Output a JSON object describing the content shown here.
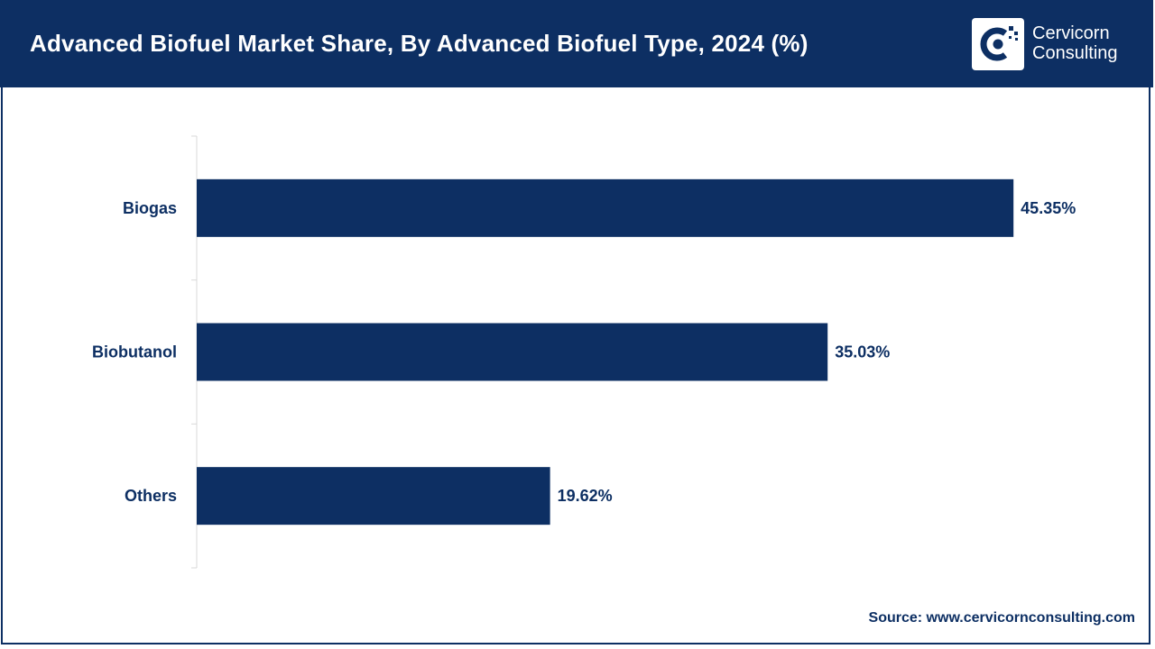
{
  "header": {
    "title": "Advanced Biofuel Market Share, By Advanced Biofuel Type, 2024 (%)",
    "logo": {
      "line1": "Cervicorn",
      "line2": "Consulting"
    }
  },
  "footer": {
    "source": "Source: www.cervicornconsulting.com"
  },
  "colors": {
    "brand": "#0d2f63",
    "bar": "#0d2f63",
    "axis": "#d9d9d9",
    "label": "#0d2f63"
  },
  "chart_data": {
    "type": "bar",
    "orientation": "horizontal",
    "title": "Advanced Biofuel Market Share, By Advanced Biofuel Type, 2024 (%)",
    "categories": [
      "Biogas",
      "Biobutanol",
      "Others"
    ],
    "values": [
      45.35,
      35.03,
      19.62
    ],
    "data_labels": [
      "45.35%",
      "35.03%",
      "19.62%"
    ],
    "xlabel": "",
    "ylabel": "",
    "grid": false,
    "legend": "none"
  }
}
